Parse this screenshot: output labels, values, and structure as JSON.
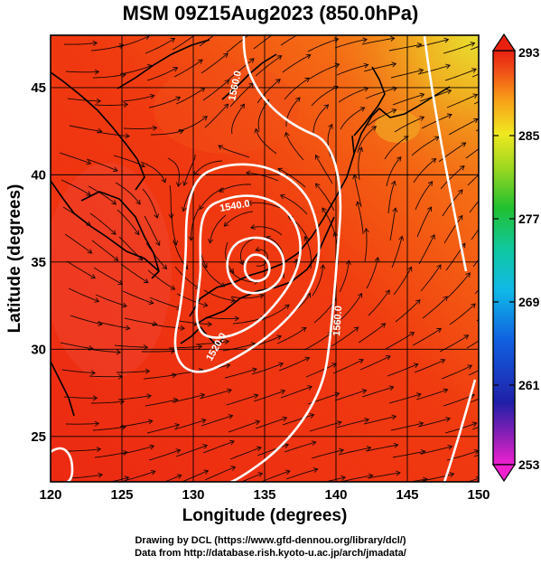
{
  "title": "MSM 09Z15Aug2023 (850.0hPa)",
  "map": {
    "xlabel": "Longitude (degrees)",
    "ylabel": "Latitude  (degrees)",
    "lon_range": [
      120,
      150
    ],
    "lat_range": [
      22.4,
      48
    ],
    "lon_ticks": [
      "120",
      "125",
      "130",
      "135",
      "140",
      "145",
      "150"
    ],
    "lat_ticks": [
      "25",
      "30",
      "35",
      "40",
      "45"
    ],
    "contour_labels": [
      "1560.0",
      "1540.0",
      "1520.0",
      "1480.0",
      "1500.0"
    ],
    "typhoon_center": {
      "lon": 134.7,
      "lat": 35.3
    }
  },
  "colorbar": {
    "labels": [
      "293",
      "285",
      "277",
      "269",
      "261",
      "253"
    ],
    "min": 253,
    "max": 293
  },
  "credits": {
    "line1": "Drawing by DCL (https://www.gfd-dennou.org/library/dcl/)",
    "line2": "Data from http://database.rish.kyoto-u.ac.jp/arch/jmadata/"
  }
}
